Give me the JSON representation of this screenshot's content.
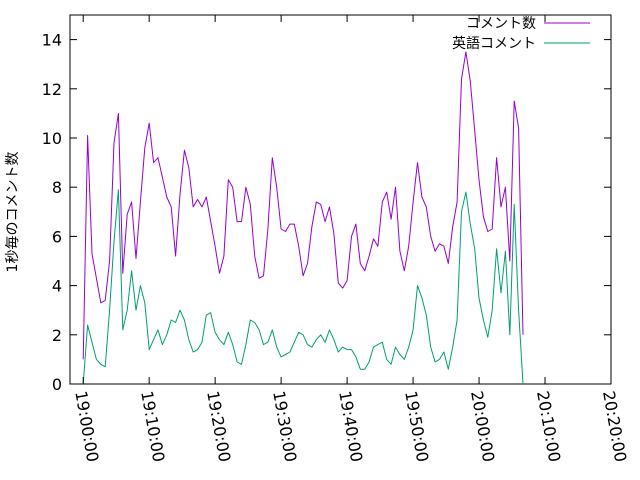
{
  "chart_data": {
    "type": "line",
    "title": "",
    "xlabel": "",
    "ylabel": "1秒毎のコメント数",
    "xlim": [
      "18:58:00",
      "20:20:00"
    ],
    "ylim": [
      0,
      15
    ],
    "x_ticks": [
      "19:00:00",
      "19:10:00",
      "19:20:00",
      "19:30:00",
      "19:40:00",
      "19:50:00",
      "20:00:00",
      "20:10:00",
      "20:20:00"
    ],
    "y_ticks": [
      0,
      2,
      4,
      6,
      8,
      10,
      12,
      14
    ],
    "grid": false,
    "legend_position": "top-right",
    "series": [
      {
        "name": "コメント数",
        "color": "#9400d3",
        "points": [
          [
            "19:00:00",
            1.0
          ],
          [
            "19:00:40",
            10.1
          ],
          [
            "19:01:20",
            5.3
          ],
          [
            "19:02:00",
            4.3
          ],
          [
            "19:02:40",
            3.3
          ],
          [
            "19:03:20",
            3.4
          ],
          [
            "19:04:00",
            5.0
          ],
          [
            "19:04:40",
            9.8
          ],
          [
            "19:05:20",
            11.0
          ],
          [
            "19:06:00",
            4.5
          ],
          [
            "19:06:40",
            6.9
          ],
          [
            "19:07:20",
            7.4
          ],
          [
            "19:08:00",
            5.1
          ],
          [
            "19:08:40",
            7.4
          ],
          [
            "19:09:20",
            9.6
          ],
          [
            "19:10:00",
            10.6
          ],
          [
            "19:10:40",
            9.0
          ],
          [
            "19:11:20",
            9.2
          ],
          [
            "19:12:00",
            8.4
          ],
          [
            "19:12:40",
            7.6
          ],
          [
            "19:13:20",
            7.2
          ],
          [
            "19:14:00",
            5.2
          ],
          [
            "19:14:40",
            7.7
          ],
          [
            "19:15:20",
            9.5
          ],
          [
            "19:16:00",
            8.8
          ],
          [
            "19:16:40",
            7.2
          ],
          [
            "19:17:20",
            7.5
          ],
          [
            "19:18:00",
            7.2
          ],
          [
            "19:18:40",
            7.6
          ],
          [
            "19:19:20",
            6.6
          ],
          [
            "19:20:00",
            5.6
          ],
          [
            "19:20:40",
            4.5
          ],
          [
            "19:21:20",
            5.2
          ],
          [
            "19:22:00",
            8.3
          ],
          [
            "19:22:40",
            8.0
          ],
          [
            "19:23:20",
            6.6
          ],
          [
            "19:24:00",
            6.6
          ],
          [
            "19:24:40",
            8.0
          ],
          [
            "19:25:20",
            7.3
          ],
          [
            "19:26:00",
            5.2
          ],
          [
            "19:26:40",
            4.3
          ],
          [
            "19:27:20",
            4.4
          ],
          [
            "19:28:00",
            6.3
          ],
          [
            "19:28:40",
            9.2
          ],
          [
            "19:29:20",
            8.0
          ],
          [
            "19:30:00",
            6.3
          ],
          [
            "19:30:40",
            6.2
          ],
          [
            "19:31:20",
            6.5
          ],
          [
            "19:32:00",
            6.5
          ],
          [
            "19:32:40",
            5.6
          ],
          [
            "19:33:20",
            4.4
          ],
          [
            "19:34:00",
            4.9
          ],
          [
            "19:34:40",
            6.4
          ],
          [
            "19:35:20",
            7.4
          ],
          [
            "19:36:00",
            7.3
          ],
          [
            "19:36:40",
            6.6
          ],
          [
            "19:37:20",
            7.2
          ],
          [
            "19:38:00",
            6.1
          ],
          [
            "19:38:40",
            4.1
          ],
          [
            "19:39:20",
            3.9
          ],
          [
            "19:40:00",
            4.2
          ],
          [
            "19:40:40",
            6.0
          ],
          [
            "19:41:20",
            6.5
          ],
          [
            "19:42:00",
            4.9
          ],
          [
            "19:42:40",
            4.6
          ],
          [
            "19:43:20",
            5.2
          ],
          [
            "19:44:00",
            5.9
          ],
          [
            "19:44:40",
            5.6
          ],
          [
            "19:45:20",
            7.4
          ],
          [
            "19:46:00",
            7.8
          ],
          [
            "19:46:40",
            6.7
          ],
          [
            "19:47:20",
            8.0
          ],
          [
            "19:48:00",
            5.4
          ],
          [
            "19:48:40",
            4.6
          ],
          [
            "19:49:20",
            5.6
          ],
          [
            "19:50:00",
            7.4
          ],
          [
            "19:50:40",
            9.0
          ],
          [
            "19:51:20",
            7.6
          ],
          [
            "19:52:00",
            7.2
          ],
          [
            "19:52:40",
            6.0
          ],
          [
            "19:53:20",
            5.4
          ],
          [
            "19:54:00",
            5.7
          ],
          [
            "19:54:40",
            5.6
          ],
          [
            "19:55:20",
            4.9
          ],
          [
            "19:56:00",
            6.4
          ],
          [
            "19:56:40",
            7.4
          ],
          [
            "19:57:20",
            12.4
          ],
          [
            "19:58:00",
            13.5
          ],
          [
            "19:58:40",
            12.3
          ],
          [
            "19:59:20",
            10.3
          ],
          [
            "20:00:00",
            8.3
          ],
          [
            "20:00:40",
            6.8
          ],
          [
            "20:01:20",
            6.2
          ],
          [
            "20:02:00",
            6.3
          ],
          [
            "20:02:40",
            9.2
          ],
          [
            "20:03:20",
            7.2
          ],
          [
            "20:04:00",
            8.0
          ],
          [
            "20:04:40",
            5.0
          ],
          [
            "20:05:20",
            11.5
          ],
          [
            "20:06:00",
            10.4
          ],
          [
            "20:06:40",
            2.0
          ]
        ]
      },
      {
        "name": "英語コメント",
        "color": "#009e73",
        "points": [
          [
            "19:00:00",
            0.0
          ],
          [
            "19:00:40",
            2.4
          ],
          [
            "19:01:20",
            1.7
          ],
          [
            "19:02:00",
            1.0
          ],
          [
            "19:02:40",
            0.8
          ],
          [
            "19:03:20",
            0.7
          ],
          [
            "19:04:00",
            3.0
          ],
          [
            "19:04:40",
            5.8
          ],
          [
            "19:05:20",
            7.9
          ],
          [
            "19:06:00",
            2.2
          ],
          [
            "19:06:40",
            3.0
          ],
          [
            "19:07:20",
            4.6
          ],
          [
            "19:08:00",
            3.0
          ],
          [
            "19:08:40",
            4.0
          ],
          [
            "19:09:20",
            3.3
          ],
          [
            "19:10:00",
            1.4
          ],
          [
            "19:10:40",
            1.8
          ],
          [
            "19:11:20",
            2.2
          ],
          [
            "19:12:00",
            1.6
          ],
          [
            "19:12:40",
            2.0
          ],
          [
            "19:13:20",
            2.6
          ],
          [
            "19:14:00",
            2.5
          ],
          [
            "19:14:40",
            3.0
          ],
          [
            "19:15:20",
            2.6
          ],
          [
            "19:16:00",
            1.8
          ],
          [
            "19:16:40",
            1.3
          ],
          [
            "19:17:20",
            1.4
          ],
          [
            "19:18:00",
            1.7
          ],
          [
            "19:18:40",
            2.8
          ],
          [
            "19:19:20",
            2.9
          ],
          [
            "19:20:00",
            2.1
          ],
          [
            "19:20:40",
            1.8
          ],
          [
            "19:21:20",
            1.6
          ],
          [
            "19:22:00",
            2.1
          ],
          [
            "19:22:40",
            1.6
          ],
          [
            "19:23:20",
            0.9
          ],
          [
            "19:24:00",
            0.8
          ],
          [
            "19:24:40",
            1.6
          ],
          [
            "19:25:20",
            2.6
          ],
          [
            "19:26:00",
            2.5
          ],
          [
            "19:26:40",
            2.2
          ],
          [
            "19:27:20",
            1.6
          ],
          [
            "19:28:00",
            1.7
          ],
          [
            "19:28:40",
            2.2
          ],
          [
            "19:29:20",
            1.5
          ],
          [
            "19:30:00",
            1.1
          ],
          [
            "19:30:40",
            1.2
          ],
          [
            "19:31:20",
            1.3
          ],
          [
            "19:32:00",
            1.7
          ],
          [
            "19:32:40",
            2.1
          ],
          [
            "19:33:20",
            2.0
          ],
          [
            "19:34:00",
            1.6
          ],
          [
            "19:34:40",
            1.5
          ],
          [
            "19:35:20",
            1.8
          ],
          [
            "19:36:00",
            2.0
          ],
          [
            "19:36:40",
            1.7
          ],
          [
            "19:37:20",
            2.2
          ],
          [
            "19:38:00",
            1.8
          ],
          [
            "19:38:40",
            1.3
          ],
          [
            "19:39:20",
            1.5
          ],
          [
            "19:40:00",
            1.4
          ],
          [
            "19:40:40",
            1.4
          ],
          [
            "19:41:20",
            1.1
          ],
          [
            "19:42:00",
            0.6
          ],
          [
            "19:42:40",
            0.6
          ],
          [
            "19:43:20",
            0.9
          ],
          [
            "19:44:00",
            1.5
          ],
          [
            "19:44:40",
            1.6
          ],
          [
            "19:45:20",
            1.7
          ],
          [
            "19:46:00",
            1.0
          ],
          [
            "19:46:40",
            0.8
          ],
          [
            "19:47:20",
            1.5
          ],
          [
            "19:48:00",
            1.2
          ],
          [
            "19:48:40",
            1.0
          ],
          [
            "19:49:20",
            1.5
          ],
          [
            "19:50:00",
            2.2
          ],
          [
            "19:50:40",
            4.0
          ],
          [
            "19:51:20",
            3.5
          ],
          [
            "19:52:00",
            2.8
          ],
          [
            "19:52:40",
            1.5
          ],
          [
            "19:53:20",
            0.9
          ],
          [
            "19:54:00",
            1.0
          ],
          [
            "19:54:40",
            1.3
          ],
          [
            "19:55:20",
            0.6
          ],
          [
            "19:56:00",
            1.5
          ],
          [
            "19:56:40",
            2.6
          ],
          [
            "19:57:20",
            7.0
          ],
          [
            "19:58:00",
            7.8
          ],
          [
            "19:58:40",
            6.5
          ],
          [
            "19:59:20",
            5.5
          ],
          [
            "20:00:00",
            3.5
          ],
          [
            "20:00:40",
            2.6
          ],
          [
            "20:01:20",
            1.9
          ],
          [
            "20:02:00",
            3.0
          ],
          [
            "20:02:40",
            5.5
          ],
          [
            "20:03:20",
            3.7
          ],
          [
            "20:04:00",
            5.4
          ],
          [
            "20:04:40",
            2.0
          ],
          [
            "20:05:20",
            7.3
          ],
          [
            "20:06:00",
            3.0
          ],
          [
            "20:06:40",
            0.0
          ]
        ]
      }
    ]
  }
}
